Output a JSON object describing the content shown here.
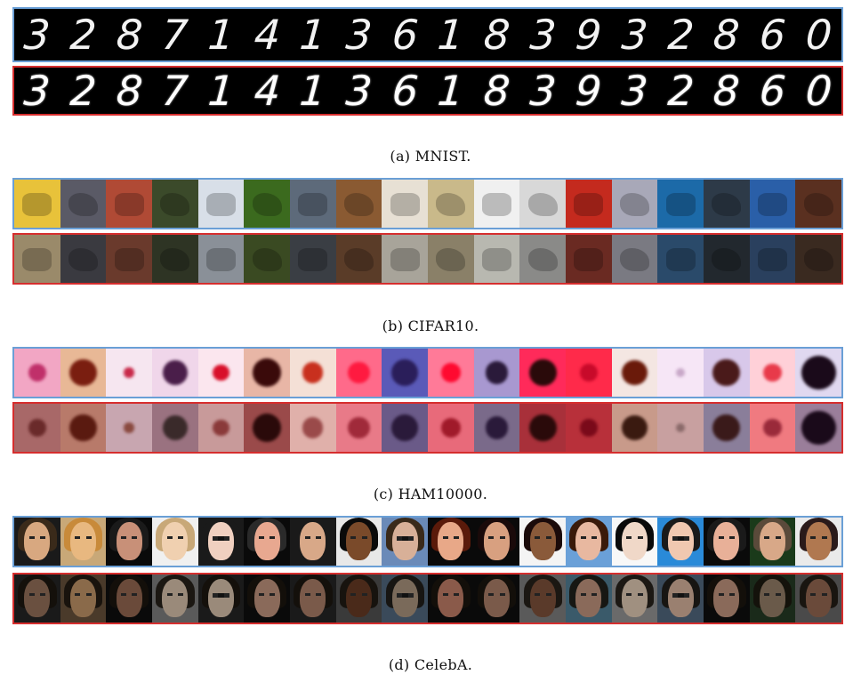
{
  "panels": {
    "mnist": {
      "caption": "(a) MNIST.",
      "digits": [
        "3",
        "2",
        "8",
        "7",
        "1",
        "4",
        "1",
        "3",
        "6",
        "1",
        "8",
        "3",
        "9",
        "3",
        "2",
        "8",
        "6",
        "0"
      ]
    },
    "cifar": {
      "caption": "(b) CIFAR10.",
      "orig_colors": [
        "#e8c23a",
        "#5a5a66",
        "#b04a35",
        "#3b4a2a",
        "#d8dfe8",
        "#3b6a1e",
        "#5d6a7a",
        "#8a5a32",
        "#e7e0d4",
        "#c9b98a",
        "#f0f0f0",
        "#d8d8d8",
        "#c42a1e",
        "#a8a8b8",
        "#1c6aa8",
        "#2d3a48",
        "#2a5fa8",
        "#5a3020"
      ],
      "recon_colors": [
        "#9a8a6a",
        "#3a3a40",
        "#6a3a2c",
        "#2e3424",
        "#8a9098",
        "#3a4a22",
        "#3a3e44",
        "#5a3c28",
        "#a8a49a",
        "#8a8068",
        "#b8b8b0",
        "#8a8a88",
        "#6a2a22",
        "#7a7a82",
        "#2a4a6a",
        "#22282e",
        "#2a405e",
        "#3a2a20"
      ]
    },
    "ham": {
      "caption": "(c) HAM10000.",
      "orig_bg": [
        "#f2a6c4",
        "#e8b896",
        "#f6e6f0",
        "#f0d6ea",
        "#fbe6ee",
        "#e8b6a6",
        "#f4e0d6",
        "#ff6a8a",
        "#5a5ab8",
        "#ff7a98",
        "#a898d0",
        "#ff2a5a",
        "#ff2a4a",
        "#f4e6e2",
        "#f6e6f6",
        "#d8c8ea",
        "#ffd0d8",
        "#e0d8f0"
      ],
      "orig_blob": [
        "#c0306a",
        "#7a1e10",
        "#c82a4a",
        "#4a1e4a",
        "#d8102a",
        "#3a0a0a",
        "#c8301e",
        "#ff1a40",
        "#2a1e5a",
        "#ff0a30",
        "#2a1a3a",
        "#2a0a0a",
        "#c80a2a",
        "#6a1a0a",
        "#c8a8c8",
        "#4a1a1a",
        "#e83a4a",
        "#1a0a1a"
      ],
      "recon_bg": [
        "#a86868",
        "#b87a6a",
        "#c8a6b0",
        "#9a7280",
        "#c89a9a",
        "#9a4a4a",
        "#e0b0aa",
        "#e87a88",
        "#6a5a88",
        "#e86a7a",
        "#7a6a8a",
        "#a8303a",
        "#b8303a",
        "#c89a8a",
        "#c8a0a0",
        "#8a7e9a",
        "#f07a80",
        "#9a7e9a"
      ],
      "recon_blob": [
        "#6a2a2a",
        "#5a1a10",
        "#8a4a40",
        "#3a2a2a",
        "#8a3a3a",
        "#2a0a0a",
        "#9a4a4a",
        "#a02a3a",
        "#2a1a3a",
        "#a01a2a",
        "#2a1a3a",
        "#2a0a0a",
        "#7a0a1a",
        "#3a1a10",
        "#8a6a6a",
        "#3a1a1a",
        "#9a2a3a",
        "#1a0a1a"
      ]
    },
    "celeba": {
      "caption": "(d) CelebA.",
      "orig_bg": [
        "#1a1a1a",
        "#c8a878",
        "#0a0a0a",
        "#f0f0f0",
        "#1a1a1a",
        "#0a0a0a",
        "#1a1a1a",
        "#e8e8e8",
        "#6a8ab8",
        "#0a0a0a",
        "#0a0a0a",
        "#f4f4f4",
        "#6aa0d8",
        "#f8f8f8",
        "#2a8ad8",
        "#0a0a0a",
        "#1a3a1a",
        "#eaeaea"
      ],
      "orig_face": [
        "#d8a880",
        "#e8b880",
        "#c89078",
        "#f0d0b0",
        "#f0d0c0",
        "#e8a890",
        "#d8a888",
        "#7a4a2a",
        "#d8b098",
        "#e8a888",
        "#d8a080",
        "#8a5a3a",
        "#e8b8a0",
        "#f0d8c8",
        "#f0c8b0",
        "#e8b098",
        "#d8a888",
        "#b07850"
      ],
      "orig_hair": [
        "#3a2a1a",
        "#c88a3a",
        "#1a1a1a",
        "#c8a878",
        "#1a1a1a",
        "#2a2a2a",
        "#1a1a1a",
        "#0a0a0a",
        "#3a2a1a",
        "#5a1a0a",
        "#1a0a0a",
        "#1a0a0a",
        "#3a1a0a",
        "#0a0a0a",
        "#1a1a1a",
        "#1a1a1a",
        "#5a4a3a",
        "#2a1a1a"
      ],
      "recon_bg": [
        "#1a1a1a",
        "#4a3a2a",
        "#0a0a0a",
        "#5a5a5a",
        "#1a1a1a",
        "#0a0a0a",
        "#1a1a1a",
        "#3a3a3a",
        "#3a4a5a",
        "#0a0a0a",
        "#0a0a0a",
        "#5a5a5a",
        "#3a5a6a",
        "#6a6a6a",
        "#3a4a5a",
        "#0a0a0a",
        "#1a2a1a",
        "#4a4a4a"
      ],
      "recon_face": [
        "#6a5040",
        "#8a6a4a",
        "#6a4a3a",
        "#9a8a7a",
        "#9a8a7a",
        "#8a6a5a",
        "#7a5a4a",
        "#4a2a1a",
        "#7a6a5a",
        "#8a5a4a",
        "#7a5a4a",
        "#5a3a2a",
        "#8a6a5a",
        "#a09080",
        "#9a8070",
        "#8a6a5a",
        "#6a5a4a",
        "#6a4a3a"
      ]
    },
    "border_colors": {
      "original": "#6a9fd6",
      "reconstruction": "#d62e2e"
    }
  }
}
